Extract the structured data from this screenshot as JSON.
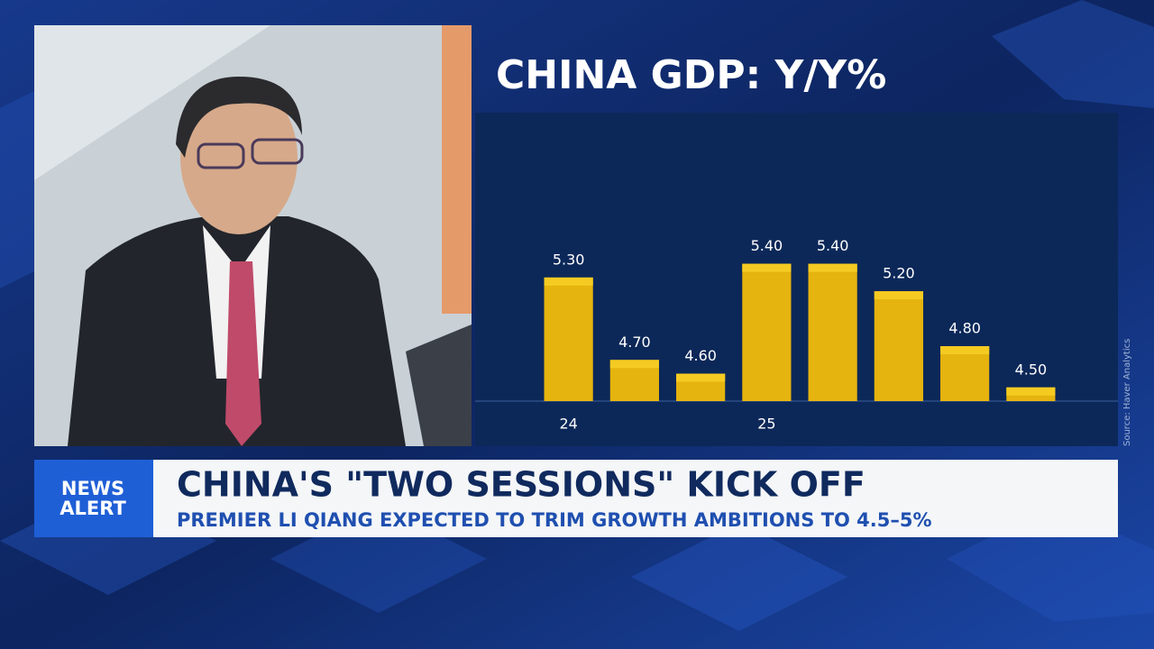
{
  "chart_data": {
    "type": "bar",
    "title": "CHINA GDP: Y/Y%",
    "categories": [
      "24",
      null,
      null,
      "25",
      null,
      null,
      null,
      null
    ],
    "values": [
      5.3,
      4.7,
      4.6,
      5.4,
      5.4,
      5.2,
      4.8,
      4.5
    ],
    "value_labels": [
      "5.30",
      "4.70",
      "4.60",
      "5.40",
      "5.40",
      "5.20",
      "4.80",
      "4.50"
    ],
    "color": "#e6b40e",
    "ylim": [
      4.4,
      6.5
    ],
    "source": "Source: Haver Analytics"
  },
  "banner": {
    "tag": [
      "NEWS",
      "ALERT"
    ],
    "headline": "CHINA'S \"TWO SESSIONS\" KICK OFF",
    "subheadline": "PREMIER LI QIANG EXPECTED TO TRIM GROWTH AMBITIONS TO 4.5–5%"
  }
}
